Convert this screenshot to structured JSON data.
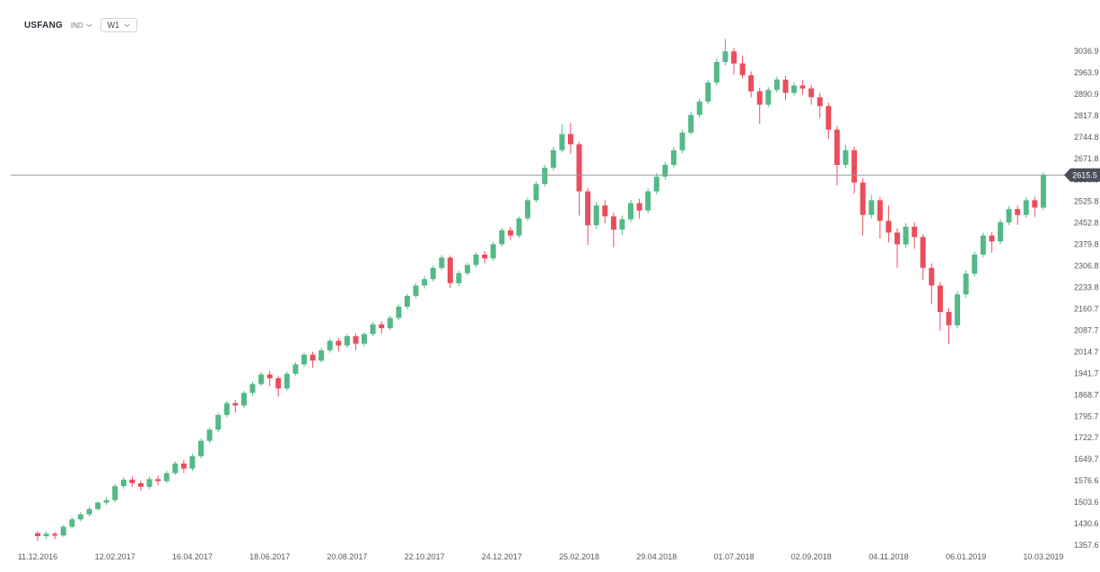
{
  "header": {
    "symbol": "USFANG",
    "instrument_type": "IND",
    "timeframe": "W1"
  },
  "price_scale": {
    "current_price": "2615.5",
    "ticks": [
      "3036.9",
      "2963.9",
      "2890.9",
      "2817.8",
      "2744.8",
      "2671.8",
      "2598.8",
      "2525.8",
      "2452.8",
      "2379.8",
      "2306.8",
      "2233.8",
      "2160.7",
      "2087.7",
      "2014.7",
      "1941.7",
      "1868.7",
      "1795.7",
      "1722.7",
      "1649.7",
      "1576.6",
      "1503.6",
      "1430.6",
      "1357.6"
    ]
  },
  "time_scale": {
    "labels": [
      "11.12.2016",
      "12.02.2017",
      "16.04.2017",
      "18.06.2017",
      "20.08.2017",
      "22.10.2017",
      "24.12.2017",
      "25.02.2018",
      "29.04.2018",
      "01.07.2018",
      "02.09.2018",
      "04.11.2018",
      "06.01.2019",
      "10.03.2019"
    ]
  },
  "chart_data": {
    "type": "candlestick",
    "title": "USFANG weekly (W1) candlestick chart",
    "xlabel": "date",
    "ylabel": "price",
    "ylim": [
      1357.6,
      3036.9
    ],
    "grid": false,
    "legend": "none",
    "up_color": "#53b987",
    "down_color": "#eb4d5c",
    "price_line_color": "#9598a1",
    "badge_color": "#4a4e59",
    "current_price": 2615.5,
    "x_tick_every": 9,
    "columns": [
      "date",
      "open",
      "high",
      "low",
      "close"
    ],
    "candles": [
      [
        "11.12.2016",
        1398,
        1405,
        1372,
        1388
      ],
      [
        "18.12.2016",
        1388,
        1404,
        1380,
        1396
      ],
      [
        "25.12.2016",
        1396,
        1402,
        1378,
        1390
      ],
      [
        "01.01.2017",
        1390,
        1426,
        1386,
        1420
      ],
      [
        "08.01.2017",
        1420,
        1452,
        1414,
        1445
      ],
      [
        "15.01.2017",
        1445,
        1470,
        1438,
        1462
      ],
      [
        "22.01.2017",
        1462,
        1488,
        1455,
        1480
      ],
      [
        "29.01.2017",
        1480,
        1508,
        1474,
        1502
      ],
      [
        "05.02.2017",
        1502,
        1520,
        1494,
        1510
      ],
      [
        "12.02.2017",
        1510,
        1565,
        1504,
        1558
      ],
      [
        "19.02.2017",
        1558,
        1588,
        1550,
        1580
      ],
      [
        "26.02.2017",
        1580,
        1592,
        1556,
        1568
      ],
      [
        "05.03.2017",
        1568,
        1576,
        1542,
        1556
      ],
      [
        "12.03.2017",
        1556,
        1590,
        1548,
        1582
      ],
      [
        "19.03.2017",
        1582,
        1594,
        1560,
        1575
      ],
      [
        "26.03.2017",
        1575,
        1610,
        1568,
        1602
      ],
      [
        "02.04.2017",
        1602,
        1642,
        1596,
        1635
      ],
      [
        "09.04.2017",
        1635,
        1648,
        1602,
        1618
      ],
      [
        "16.04.2017",
        1618,
        1668,
        1610,
        1660
      ],
      [
        "23.04.2017",
        1660,
        1720,
        1652,
        1712
      ],
      [
        "30.04.2017",
        1712,
        1758,
        1705,
        1750
      ],
      [
        "07.05.2017",
        1750,
        1808,
        1742,
        1800
      ],
      [
        "14.05.2017",
        1800,
        1848,
        1792,
        1840
      ],
      [
        "21.05.2017",
        1840,
        1852,
        1808,
        1832
      ],
      [
        "28.05.2017",
        1832,
        1882,
        1824,
        1875
      ],
      [
        "04.06.2017",
        1875,
        1912,
        1866,
        1905
      ],
      [
        "11.06.2017",
        1905,
        1946,
        1898,
        1938
      ],
      [
        "18.06.2017",
        1938,
        1950,
        1898,
        1925
      ],
      [
        "25.06.2017",
        1925,
        1932,
        1862,
        1890
      ],
      [
        "02.07.2017",
        1890,
        1948,
        1882,
        1940
      ],
      [
        "09.07.2017",
        1940,
        1980,
        1932,
        1972
      ],
      [
        "16.07.2017",
        1972,
        2012,
        1964,
        2005
      ],
      [
        "23.07.2017",
        2005,
        2015,
        1960,
        1985
      ],
      [
        "30.07.2017",
        1985,
        2028,
        1978,
        2020
      ],
      [
        "06.08.2017",
        2020,
        2060,
        2012,
        2052
      ],
      [
        "13.08.2017",
        2052,
        2062,
        2015,
        2036
      ],
      [
        "20.08.2017",
        2036,
        2076,
        2028,
        2068
      ],
      [
        "27.08.2017",
        2068,
        2078,
        2020,
        2042
      ],
      [
        "03.09.2017",
        2042,
        2082,
        2034,
        2075
      ],
      [
        "10.09.2017",
        2075,
        2116,
        2068,
        2108
      ],
      [
        "17.09.2017",
        2108,
        2118,
        2076,
        2095
      ],
      [
        "24.09.2017",
        2095,
        2138,
        2088,
        2130
      ],
      [
        "01.10.2017",
        2130,
        2176,
        2122,
        2168
      ],
      [
        "08.10.2017",
        2168,
        2212,
        2160,
        2205
      ],
      [
        "15.10.2017",
        2205,
        2248,
        2198,
        2240
      ],
      [
        "22.10.2017",
        2240,
        2272,
        2230,
        2262
      ],
      [
        "29.10.2017",
        2262,
        2308,
        2254,
        2300
      ],
      [
        "05.11.2017",
        2300,
        2344,
        2292,
        2335
      ],
      [
        "12.11.2017",
        2335,
        2342,
        2232,
        2248
      ],
      [
        "19.11.2017",
        2248,
        2290,
        2238,
        2282
      ],
      [
        "26.11.2017",
        2282,
        2318,
        2274,
        2310
      ],
      [
        "03.12.2017",
        2310,
        2352,
        2302,
        2345
      ],
      [
        "10.12.2017",
        2345,
        2356,
        2315,
        2332
      ],
      [
        "17.12.2017",
        2332,
        2388,
        2324,
        2380
      ],
      [
        "24.12.2017",
        2380,
        2436,
        2372,
        2428
      ],
      [
        "31.12.2017",
        2428,
        2440,
        2394,
        2410
      ],
      [
        "07.01.2018",
        2410,
        2475,
        2402,
        2468
      ],
      [
        "14.01.2018",
        2468,
        2538,
        2460,
        2530
      ],
      [
        "21.01.2018",
        2530,
        2594,
        2522,
        2585
      ],
      [
        "28.01.2018",
        2585,
        2650,
        2576,
        2640
      ],
      [
        "04.02.2018",
        2640,
        2712,
        2630,
        2700
      ],
      [
        "11.02.2018",
        2700,
        2788,
        2692,
        2755
      ],
      [
        "18.02.2018",
        2755,
        2792,
        2688,
        2720
      ],
      [
        "25.02.2018",
        2720,
        2728,
        2478,
        2560
      ],
      [
        "04.03.2018",
        2560,
        2572,
        2378,
        2445
      ],
      [
        "11.03.2018",
        2445,
        2525,
        2432,
        2512
      ],
      [
        "18.03.2018",
        2512,
        2530,
        2452,
        2475
      ],
      [
        "25.03.2018",
        2475,
        2488,
        2370,
        2430
      ],
      [
        "01.04.2018",
        2430,
        2478,
        2412,
        2465
      ],
      [
        "08.04.2018",
        2465,
        2532,
        2456,
        2520
      ],
      [
        "15.04.2018",
        2520,
        2535,
        2468,
        2495
      ],
      [
        "22.04.2018",
        2495,
        2570,
        2486,
        2560
      ],
      [
        "29.04.2018",
        2560,
        2622,
        2550,
        2610
      ],
      [
        "06.05.2018",
        2610,
        2660,
        2600,
        2650
      ],
      [
        "13.05.2018",
        2650,
        2710,
        2642,
        2700
      ],
      [
        "20.05.2018",
        2700,
        2770,
        2690,
        2760
      ],
      [
        "27.05.2018",
        2760,
        2830,
        2752,
        2820
      ],
      [
        "03.06.2018",
        2820,
        2876,
        2810,
        2865
      ],
      [
        "10.06.2018",
        2865,
        2940,
        2856,
        2930
      ],
      [
        "17.06.2018",
        2930,
        3012,
        2920,
        3000
      ],
      [
        "24.06.2018",
        3000,
        3078,
        2988,
        3036
      ],
      [
        "01.07.2018",
        3036,
        3048,
        2958,
        2995
      ],
      [
        "08.07.2018",
        2995,
        3022,
        2944,
        2955
      ],
      [
        "15.07.2018",
        2955,
        2968,
        2880,
        2900
      ],
      [
        "22.07.2018",
        2900,
        2912,
        2790,
        2855
      ],
      [
        "29.07.2018",
        2855,
        2915,
        2846,
        2905
      ],
      [
        "05.08.2018",
        2905,
        2950,
        2896,
        2940
      ],
      [
        "12.08.2018",
        2940,
        2952,
        2870,
        2895
      ],
      [
        "19.08.2018",
        2895,
        2932,
        2886,
        2920
      ],
      [
        "26.08.2018",
        2920,
        2938,
        2888,
        2910
      ],
      [
        "02.09.2018",
        2910,
        2922,
        2855,
        2880
      ],
      [
        "09.09.2018",
        2880,
        2895,
        2810,
        2850
      ],
      [
        "16.09.2018",
        2850,
        2862,
        2738,
        2770
      ],
      [
        "23.09.2018",
        2770,
        2782,
        2580,
        2650
      ],
      [
        "30.09.2018",
        2650,
        2718,
        2638,
        2700
      ],
      [
        "07.10.2018",
        2700,
        2712,
        2552,
        2590
      ],
      [
        "14.10.2018",
        2590,
        2605,
        2410,
        2480
      ],
      [
        "21.10.2018",
        2480,
        2548,
        2468,
        2530
      ],
      [
        "28.10.2018",
        2530,
        2542,
        2400,
        2460
      ],
      [
        "04.11.2018",
        2460,
        2512,
        2386,
        2420
      ],
      [
        "11.11.2018",
        2420,
        2435,
        2300,
        2380
      ],
      [
        "18.11.2018",
        2380,
        2452,
        2368,
        2440
      ],
      [
        "25.11.2018",
        2440,
        2455,
        2365,
        2405
      ],
      [
        "02.12.2018",
        2405,
        2415,
        2260,
        2300
      ],
      [
        "09.12.2018",
        2300,
        2315,
        2178,
        2240
      ],
      [
        "16.12.2018",
        2240,
        2252,
        2086,
        2150
      ],
      [
        "23.12.2018",
        2150,
        2165,
        2040,
        2105
      ],
      [
        "30.12.2018",
        2105,
        2222,
        2094,
        2210
      ],
      [
        "06.01.2019",
        2210,
        2292,
        2198,
        2280
      ],
      [
        "13.01.2019",
        2280,
        2355,
        2270,
        2345
      ],
      [
        "20.01.2019",
        2345,
        2420,
        2336,
        2410
      ],
      [
        "27.01.2019",
        2410,
        2422,
        2352,
        2390
      ],
      [
        "03.02.2019",
        2390,
        2465,
        2380,
        2455
      ],
      [
        "10.02.2019",
        2455,
        2510,
        2445,
        2500
      ],
      [
        "17.02.2019",
        2500,
        2512,
        2446,
        2480
      ],
      [
        "24.02.2019",
        2480,
        2540,
        2470,
        2530
      ],
      [
        "03.03.2019",
        2530,
        2542,
        2474,
        2505
      ],
      [
        "10.03.2019",
        2505,
        2625,
        2496,
        2615.5
      ]
    ]
  }
}
